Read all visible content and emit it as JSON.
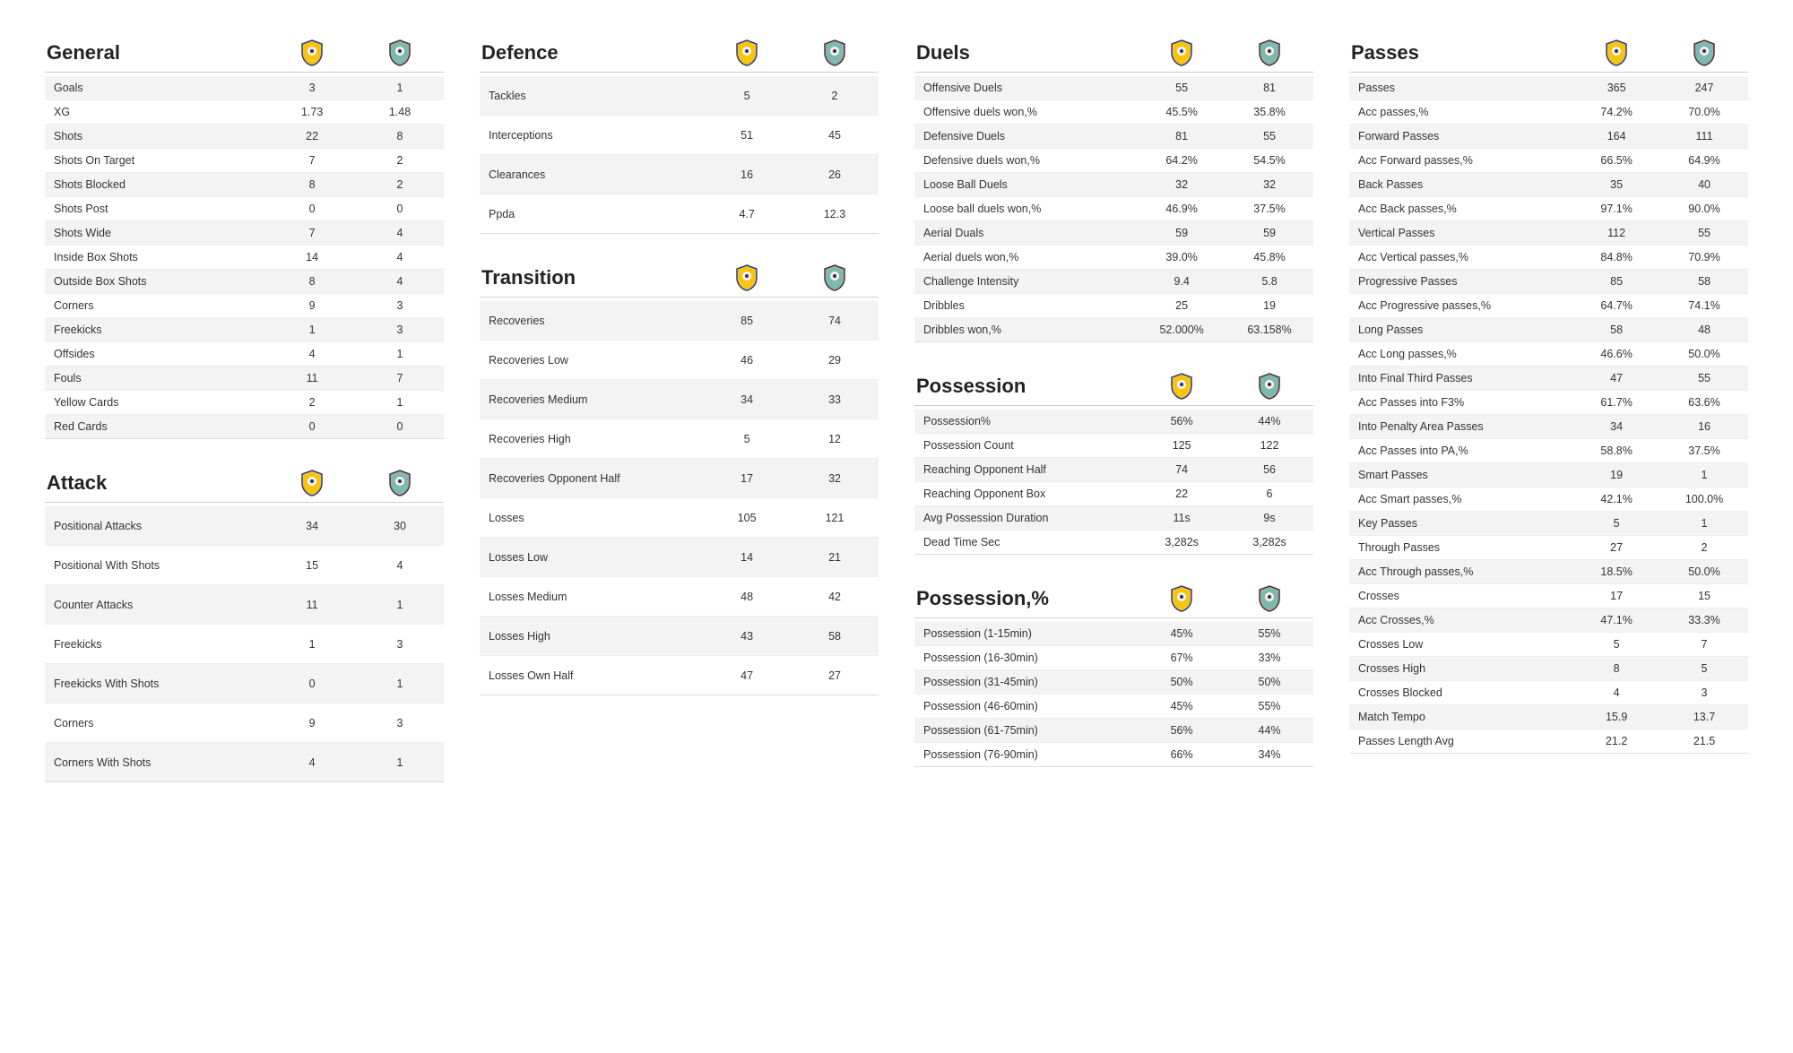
{
  "team1_crest_colors": {
    "bg": "#f6c514",
    "stroke": "#2b3a8f"
  },
  "team2_crest_colors": {
    "bg": "#7fb8b0",
    "stroke": "#5a2e2e"
  },
  "sections": {
    "general": {
      "title": "General",
      "rows": [
        {
          "label": "Goals",
          "a": "3",
          "b": "1"
        },
        {
          "label": "XG",
          "a": "1.73",
          "b": "1.48"
        },
        {
          "label": "Shots",
          "a": "22",
          "b": "8"
        },
        {
          "label": "Shots On Target",
          "a": "7",
          "b": "2"
        },
        {
          "label": "Shots Blocked",
          "a": "8",
          "b": "2"
        },
        {
          "label": "Shots Post",
          "a": "0",
          "b": "0"
        },
        {
          "label": "Shots Wide",
          "a": "7",
          "b": "4"
        },
        {
          "label": "Inside Box Shots",
          "a": "14",
          "b": "4"
        },
        {
          "label": "Outside Box Shots",
          "a": "8",
          "b": "4"
        },
        {
          "label": "Corners",
          "a": "9",
          "b": "3"
        },
        {
          "label": "Freekicks",
          "a": "1",
          "b": "3"
        },
        {
          "label": "Offsides",
          "a": "4",
          "b": "1"
        },
        {
          "label": "Fouls",
          "a": "11",
          "b": "7"
        },
        {
          "label": "Yellow Cards",
          "a": "2",
          "b": "1"
        },
        {
          "label": "Red Cards",
          "a": "0",
          "b": "0"
        }
      ]
    },
    "attack": {
      "title": "Attack",
      "rows": [
        {
          "label": "Positional Attacks",
          "a": "34",
          "b": "30"
        },
        {
          "label": "Positional With Shots",
          "a": "15",
          "b": "4"
        },
        {
          "label": "Counter Attacks",
          "a": "11",
          "b": "1"
        },
        {
          "label": "Freekicks",
          "a": "1",
          "b": "3"
        },
        {
          "label": "Freekicks With Shots",
          "a": "0",
          "b": "1"
        },
        {
          "label": "Corners",
          "a": "9",
          "b": "3"
        },
        {
          "label": "Corners With Shots",
          "a": "4",
          "b": "1"
        }
      ]
    },
    "defence": {
      "title": "Defence",
      "rows": [
        {
          "label": "Tackles",
          "a": "5",
          "b": "2"
        },
        {
          "label": "Interceptions",
          "a": "51",
          "b": "45"
        },
        {
          "label": "Clearances",
          "a": "16",
          "b": "26"
        },
        {
          "label": "Ppda",
          "a": "4.7",
          "b": "12.3"
        }
      ]
    },
    "transition": {
      "title": "Transition",
      "rows": [
        {
          "label": "Recoveries",
          "a": "85",
          "b": "74"
        },
        {
          "label": "Recoveries Low",
          "a": "46",
          "b": "29"
        },
        {
          "label": "Recoveries Medium",
          "a": "34",
          "b": "33"
        },
        {
          "label": "Recoveries High",
          "a": "5",
          "b": "12"
        },
        {
          "label": "Recoveries Opponent Half",
          "a": "17",
          "b": "32"
        },
        {
          "label": "Losses",
          "a": "105",
          "b": "121"
        },
        {
          "label": "Losses Low",
          "a": "14",
          "b": "21"
        },
        {
          "label": "Losses Medium",
          "a": "48",
          "b": "42"
        },
        {
          "label": "Losses High",
          "a": "43",
          "b": "58"
        },
        {
          "label": "Losses Own Half",
          "a": "47",
          "b": "27"
        }
      ]
    },
    "duels": {
      "title": "Duels",
      "rows": [
        {
          "label": "Offensive Duels",
          "a": "55",
          "b": "81"
        },
        {
          "label": "Offensive duels won,%",
          "a": "45.5%",
          "b": "35.8%"
        },
        {
          "label": "Defensive Duels",
          "a": "81",
          "b": "55"
        },
        {
          "label": "Defensive duels won,%",
          "a": "64.2%",
          "b": "54.5%"
        },
        {
          "label": "Loose Ball Duels",
          "a": "32",
          "b": "32"
        },
        {
          "label": "Loose ball duels won,%",
          "a": "46.9%",
          "b": "37.5%"
        },
        {
          "label": "Aerial Duals",
          "a": "59",
          "b": "59"
        },
        {
          "label": "Aerial duels won,%",
          "a": "39.0%",
          "b": "45.8%"
        },
        {
          "label": "Challenge Intensity",
          "a": "9.4",
          "b": "5.8"
        },
        {
          "label": "Dribbles",
          "a": "25",
          "b": "19"
        },
        {
          "label": "Dribbles won,%",
          "a": "52.000%",
          "b": "63.158%"
        }
      ]
    },
    "possession": {
      "title": "Possession",
      "rows": [
        {
          "label": "Possession%",
          "a": "56%",
          "b": "44%"
        },
        {
          "label": "Possession Count",
          "a": "125",
          "b": "122"
        },
        {
          "label": "Reaching Opponent Half",
          "a": "74",
          "b": "56"
        },
        {
          "label": "Reaching Opponent Box",
          "a": "22",
          "b": "6"
        },
        {
          "label": "Avg Possession Duration",
          "a": "11s",
          "b": "9s"
        },
        {
          "label": "Dead Time Sec",
          "a": "3,282s",
          "b": "3,282s"
        }
      ]
    },
    "possession_pct": {
      "title": "Possession,%",
      "rows": [
        {
          "label": "Possession (1-15min)",
          "a": "45%",
          "b": "55%"
        },
        {
          "label": "Possession (16-30min)",
          "a": "67%",
          "b": "33%"
        },
        {
          "label": "Possession (31-45min)",
          "a": "50%",
          "b": "50%"
        },
        {
          "label": "Possession (46-60min)",
          "a": "45%",
          "b": "55%"
        },
        {
          "label": "Possession (61-75min)",
          "a": "56%",
          "b": "44%"
        },
        {
          "label": "Possession (76-90min)",
          "a": "66%",
          "b": "34%"
        }
      ]
    },
    "passes": {
      "title": "Passes",
      "rows": [
        {
          "label": "Passes",
          "a": "365",
          "b": "247"
        },
        {
          "label": "Acc passes,%",
          "a": "74.2%",
          "b": "70.0%"
        },
        {
          "label": "Forward Passes",
          "a": "164",
          "b": "111"
        },
        {
          "label": "Acc Forward passes,%",
          "a": "66.5%",
          "b": "64.9%"
        },
        {
          "label": "Back Passes",
          "a": "35",
          "b": "40"
        },
        {
          "label": "Acc Back passes,%",
          "a": "97.1%",
          "b": "90.0%"
        },
        {
          "label": "Vertical Passes",
          "a": "112",
          "b": "55"
        },
        {
          "label": "Acc Vertical passes,%",
          "a": "84.8%",
          "b": "70.9%"
        },
        {
          "label": "Progressive Passes",
          "a": "85",
          "b": "58"
        },
        {
          "label": "Acc Progressive passes,%",
          "a": "64.7%",
          "b": "74.1%"
        },
        {
          "label": "Long Passes",
          "a": "58",
          "b": "48"
        },
        {
          "label": "Acc Long passes,%",
          "a": "46.6%",
          "b": "50.0%"
        },
        {
          "label": "Into Final Third Passes",
          "a": "47",
          "b": "55"
        },
        {
          "label": "Acc Passes into F3%",
          "a": "61.7%",
          "b": "63.6%"
        },
        {
          "label": "Into Penalty Area Passes",
          "a": "34",
          "b": "16"
        },
        {
          "label": "Acc Passes into PA,%",
          "a": "58.8%",
          "b": "37.5%"
        },
        {
          "label": "Smart Passes",
          "a": "19",
          "b": "1"
        },
        {
          "label": "Acc Smart passes,%",
          "a": "42.1%",
          "b": "100.0%"
        },
        {
          "label": "Key Passes",
          "a": "5",
          "b": "1"
        },
        {
          "label": "Through Passes",
          "a": "27",
          "b": "2"
        },
        {
          "label": "Acc Through passes,%",
          "a": "18.5%",
          "b": "50.0%"
        },
        {
          "label": "Crosses",
          "a": "17",
          "b": "15"
        },
        {
          "label": "Acc Crosses,%",
          "a": "47.1%",
          "b": "33.3%"
        },
        {
          "label": "Crosses Low",
          "a": "5",
          "b": "7"
        },
        {
          "label": "Crosses High",
          "a": "8",
          "b": "5"
        },
        {
          "label": "Crosses Blocked",
          "a": "4",
          "b": "3"
        },
        {
          "label": "Match Tempo",
          "a": "15.9",
          "b": "13.7"
        },
        {
          "label": "Passes Length Avg",
          "a": "21.2",
          "b": "21.5"
        }
      ]
    }
  },
  "layout": [
    [
      "general",
      "attack"
    ],
    [
      "defence",
      "transition"
    ],
    [
      "duels",
      "possession",
      "possession_pct"
    ],
    [
      "passes"
    ]
  ],
  "tall_sections": [
    "attack",
    "defence",
    "transition"
  ]
}
